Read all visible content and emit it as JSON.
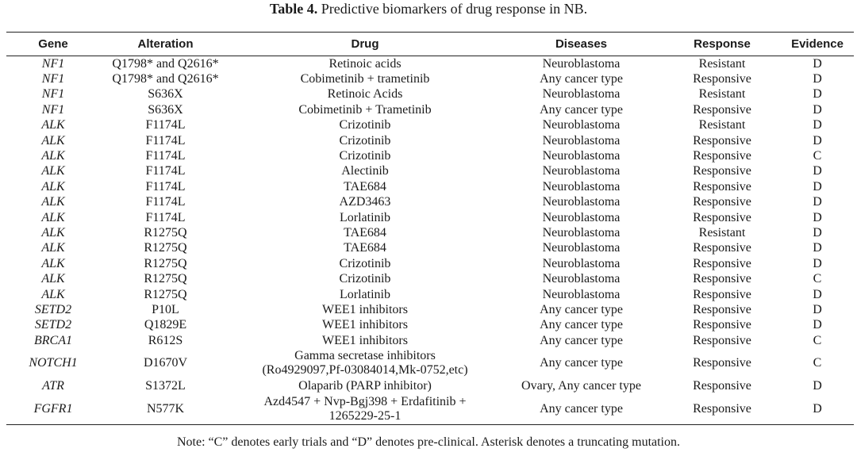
{
  "caption": {
    "label": "Table 4.",
    "text": " Predictive biomarkers of drug response in NB."
  },
  "columns": [
    "Gene",
    "Alteration",
    "Drug",
    "Diseases",
    "Response",
    "Evidence"
  ],
  "rows": [
    {
      "gene": "NF1",
      "alteration": "Q1798* and Q2616*",
      "drug": [
        "Retinoic acids"
      ],
      "disease": "Neuroblastoma",
      "response": "Resistant",
      "evidence": "D"
    },
    {
      "gene": "NF1",
      "alteration": "Q1798* and Q2616*",
      "drug": [
        "Cobimetinib + trametinib"
      ],
      "disease": "Any cancer type",
      "response": "Responsive",
      "evidence": "D"
    },
    {
      "gene": "NF1",
      "alteration": "S636X",
      "drug": [
        "Retinoic Acids"
      ],
      "disease": "Neuroblastoma",
      "response": "Resistant",
      "evidence": "D"
    },
    {
      "gene": "NF1",
      "alteration": "S636X",
      "drug": [
        "Cobimetinib + Trametinib"
      ],
      "disease": "Any cancer type",
      "response": "Responsive",
      "evidence": "D"
    },
    {
      "gene": "ALK",
      "alteration": "F1174L",
      "drug": [
        "Crizotinib"
      ],
      "disease": "Neuroblastoma",
      "response": "Resistant",
      "evidence": "D"
    },
    {
      "gene": "ALK",
      "alteration": "F1174L",
      "drug": [
        "Crizotinib"
      ],
      "disease": "Neuroblastoma",
      "response": "Responsive",
      "evidence": "D"
    },
    {
      "gene": "ALK",
      "alteration": "F1174L",
      "drug": [
        "Crizotinib"
      ],
      "disease": "Neuroblastoma",
      "response": "Responsive",
      "evidence": "C"
    },
    {
      "gene": "ALK",
      "alteration": "F1174L",
      "drug": [
        "Alectinib"
      ],
      "disease": "Neuroblastoma",
      "response": "Responsive",
      "evidence": "D"
    },
    {
      "gene": "ALK",
      "alteration": "F1174L",
      "drug": [
        "TAE684"
      ],
      "disease": "Neuroblastoma",
      "response": "Responsive",
      "evidence": "D"
    },
    {
      "gene": "ALK",
      "alteration": "F1174L",
      "drug": [
        "AZD3463"
      ],
      "disease": "Neuroblastoma",
      "response": "Responsive",
      "evidence": "D"
    },
    {
      "gene": "ALK",
      "alteration": "F1174L",
      "drug": [
        "Lorlatinib"
      ],
      "disease": "Neuroblastoma",
      "response": "Responsive",
      "evidence": "D"
    },
    {
      "gene": "ALK",
      "alteration": "R1275Q",
      "drug": [
        "TAE684"
      ],
      "disease": "Neuroblastoma",
      "response": "Resistant",
      "evidence": "D"
    },
    {
      "gene": "ALK",
      "alteration": "R1275Q",
      "drug": [
        "TAE684"
      ],
      "disease": "Neuroblastoma",
      "response": "Responsive",
      "evidence": "D"
    },
    {
      "gene": "ALK",
      "alteration": "R1275Q",
      "drug": [
        "Crizotinib"
      ],
      "disease": "Neuroblastoma",
      "response": "Responsive",
      "evidence": "D"
    },
    {
      "gene": "ALK",
      "alteration": "R1275Q",
      "drug": [
        "Crizotinib"
      ],
      "disease": "Neuroblastoma",
      "response": "Responsive",
      "evidence": "C"
    },
    {
      "gene": "ALK",
      "alteration": "R1275Q",
      "drug": [
        "Lorlatinib"
      ],
      "disease": "Neuroblastoma",
      "response": "Responsive",
      "evidence": "D"
    },
    {
      "gene": "SETD2",
      "alteration": "P10L",
      "drug": [
        "WEE1 inhibitors"
      ],
      "disease": "Any cancer type",
      "response": "Responsive",
      "evidence": "D"
    },
    {
      "gene": "SETD2",
      "alteration": "Q1829E",
      "drug": [
        "WEE1 inhibitors"
      ],
      "disease": "Any cancer type",
      "response": "Responsive",
      "evidence": "D"
    },
    {
      "gene": "BRCA1",
      "alteration": "R612S",
      "drug": [
        "WEE1 inhibitors"
      ],
      "disease": "Any cancer type",
      "response": "Responsive",
      "evidence": "C"
    },
    {
      "gene": "NOTCH1",
      "alteration": "D1670V",
      "drug": [
        "Gamma secretase inhibitors",
        "(Ro4929097,Pf-03084014,Mk-0752,etc)"
      ],
      "disease": "Any cancer type",
      "response": "Responsive",
      "evidence": "C"
    },
    {
      "gene": "ATR",
      "alteration": "S1372L",
      "drug": [
        "Olaparib (PARP inhibitor)"
      ],
      "disease": "Ovary, Any cancer type",
      "response": "Responsive",
      "evidence": "D"
    },
    {
      "gene": "FGFR1",
      "alteration": "N577K",
      "drug": [
        "Azd4547 + Nvp-Bgj398 + Erdafitinib +",
        "1265229-25-1"
      ],
      "disease": "Any cancer type",
      "response": "Responsive",
      "evidence": "D"
    }
  ],
  "note": "Note: “C” denotes early trials and “D” denotes pre-clinical. Asterisk denotes a truncating mutation."
}
